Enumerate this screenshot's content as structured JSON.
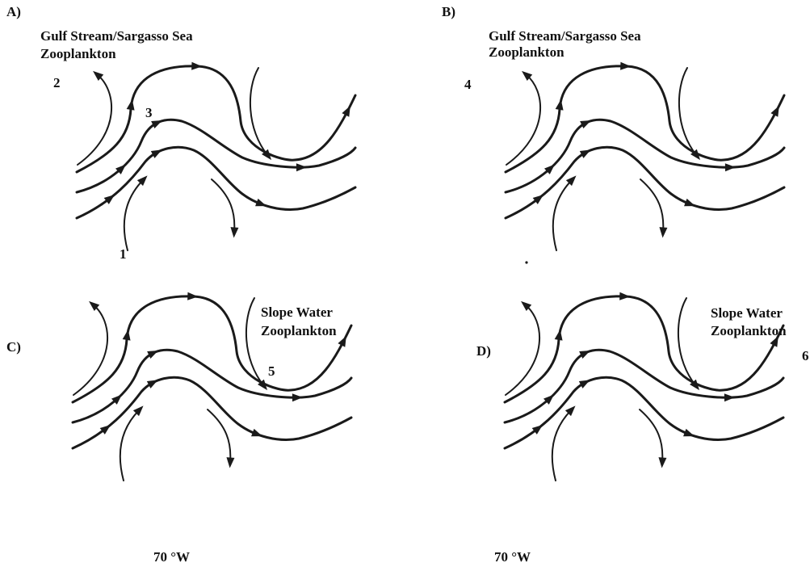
{
  "figure": {
    "panels": [
      {
        "letter": "A)",
        "water_label": [
          "Gulf Stream/Sargasso Sea",
          "Zooplankton"
        ],
        "numbers": [
          "1",
          "2",
          "3"
        ],
        "coord": ""
      },
      {
        "letter": "B)",
        "water_label": [
          "Gulf Stream/Sargasso Sea",
          "Zooplankton"
        ],
        "numbers": [
          "4"
        ],
        "coord": ""
      },
      {
        "letter": "C)",
        "water_label": [
          "Slope Water",
          "Zooplankton"
        ],
        "numbers": [
          "5"
        ],
        "coord": "70 °W"
      },
      {
        "letter": "D)",
        "water_label": [
          "Slope Water",
          "Zooplankton"
        ],
        "numbers": [
          "6"
        ],
        "coord": "70 °W"
      }
    ],
    "colors": {
      "ink": "#1a1a1a",
      "background": "#ffffff"
    }
  }
}
